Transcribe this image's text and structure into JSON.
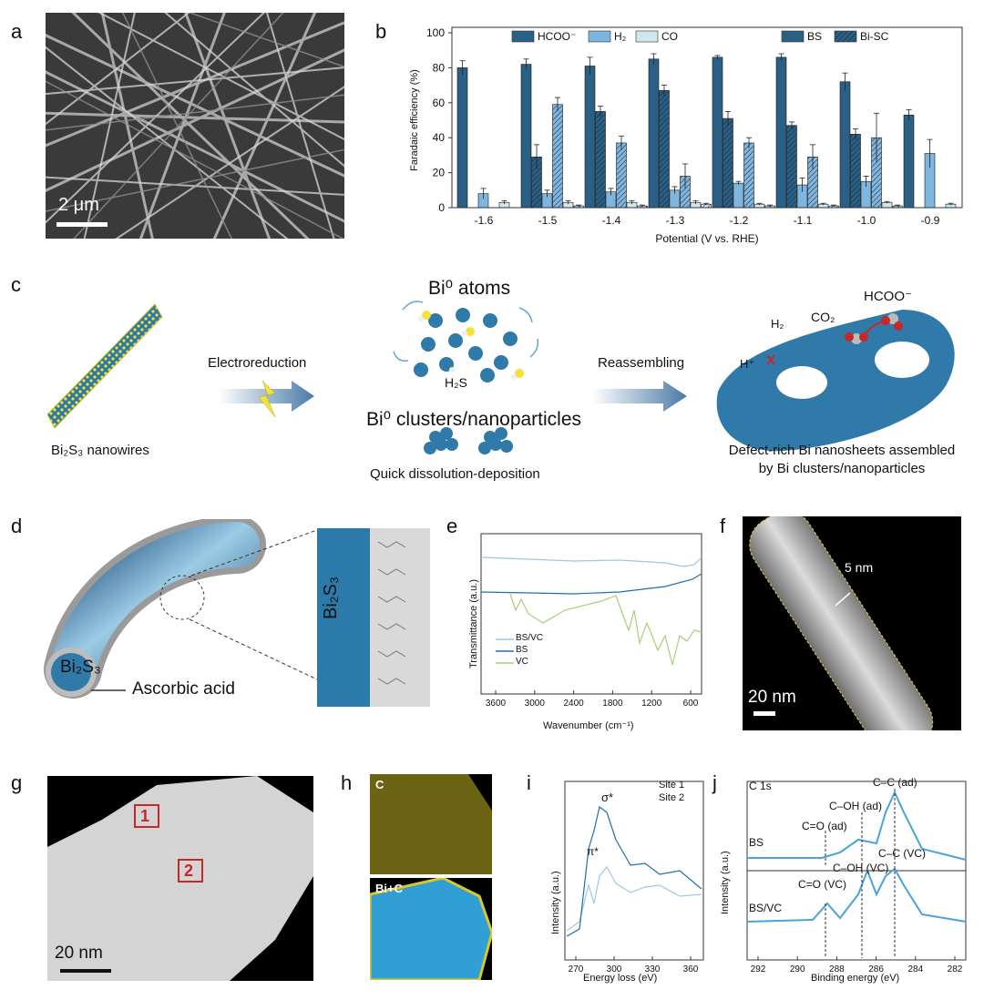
{
  "panel_labels": {
    "a": "a",
    "b": "b",
    "c": "c",
    "d": "d",
    "e": "e",
    "f": "f",
    "g": "g",
    "h": "h",
    "i": "i",
    "j": "j"
  },
  "panel_a": {
    "scale_bar": "2 μm"
  },
  "chart_data": [
    {
      "panel": "b",
      "type": "bar",
      "ylabel": "Faradaic efficiency (%)",
      "xlabel": "Potential (V vs. RHE)",
      "ylim": [
        0,
        100
      ],
      "yticks": [
        "0",
        "20",
        "40",
        "60",
        "80",
        "100"
      ],
      "categories": [
        "-1.6",
        "-1.5",
        "-1.4",
        "-1.3",
        "-1.2",
        "-1.1",
        "-1.0",
        "-0.9"
      ],
      "legend_products": [
        "HCOO⁻",
        "H₂",
        "CO"
      ],
      "legend_catalysts": [
        "BS",
        "Bi-SC"
      ],
      "colors": {
        "HCOO": "#2a5f86",
        "H2": "#7fb6e0",
        "CO": "#cfe7ef"
      },
      "series": [
        {
          "name": "HCOO⁻",
          "catalyst": "BS",
          "values": [
            80,
            82,
            81,
            85,
            86,
            86,
            72,
            53
          ],
          "err": [
            4,
            3,
            5,
            3,
            1,
            2,
            5,
            3
          ]
        },
        {
          "name": "HCOO⁻",
          "catalyst": "Bi-SC",
          "values": [
            null,
            29,
            55,
            67,
            51,
            47,
            42,
            null
          ],
          "err": [
            0,
            7,
            3,
            3,
            4,
            2,
            3,
            0
          ]
        },
        {
          "name": "H₂",
          "catalyst": "BS",
          "values": [
            8,
            8,
            9,
            10,
            14,
            13,
            15,
            31
          ],
          "err": [
            3,
            2,
            2,
            2,
            1,
            4,
            3,
            8
          ]
        },
        {
          "name": "H₂",
          "catalyst": "Bi-SC",
          "values": [
            null,
            59,
            37,
            18,
            37,
            29,
            40,
            null
          ],
          "err": [
            0,
            4,
            4,
            7,
            3,
            7,
            14,
            0
          ]
        },
        {
          "name": "CO",
          "catalyst": "BS",
          "values": [
            3,
            3,
            3,
            3,
            2,
            2,
            3,
            2
          ],
          "err": [
            1,
            1,
            1,
            1,
            0.5,
            0.5,
            0.5,
            0.5
          ]
        },
        {
          "name": "CO",
          "catalyst": "Bi-SC",
          "values": [
            null,
            1,
            1,
            2,
            1,
            1,
            1,
            null
          ],
          "err": [
            0,
            0.5,
            0.5,
            0.5,
            0.5,
            0.5,
            0.5,
            0
          ]
        }
      ]
    },
    {
      "panel": "e",
      "type": "line",
      "xlabel": "Wavenumber (cm⁻¹)",
      "ylabel": "Transmittance (a.u.)",
      "xticks": [
        "3600",
        "3000",
        "2400",
        "1800",
        "1200",
        "600"
      ],
      "series": [
        {
          "name": "BS/VC",
          "color": "#9cc7e3"
        },
        {
          "name": "BS",
          "color": "#1f6fad"
        },
        {
          "name": "VC",
          "color": "#a9cf7a"
        }
      ]
    },
    {
      "panel": "i",
      "type": "line",
      "xlabel": "Energy loss (eV)",
      "ylabel": "Intensity (a.u.)",
      "xticks": [
        "270",
        "300",
        "330",
        "360"
      ],
      "annotations": [
        "σ*",
        "π*"
      ],
      "series": [
        {
          "name": "Site 1",
          "color": "#1f6fad"
        },
        {
          "name": "Site 2",
          "color": "#9cc7e3"
        }
      ]
    },
    {
      "panel": "j",
      "type": "line",
      "title": "C 1s",
      "xlabel": "Binding energy (eV)",
      "ylabel": "Intensity (a.u.)",
      "xticks": [
        "292",
        "290",
        "288",
        "286",
        "284",
        "282"
      ],
      "annotations_top": [
        "C–C (ad)",
        "C–OH (ad)",
        "C=O (ad)",
        "BS"
      ],
      "annotations_bottom": [
        "C–C (VC)",
        "C–OH (VC)",
        "C=O (VC)",
        "BS/VC"
      ]
    }
  ],
  "panel_c": {
    "nanowire_label": "Bi₂S₃ nanowires",
    "step1": "Electroreduction",
    "atoms_label": "Bi⁰ atoms",
    "h2s_label": "H₂S",
    "clusters_label": "Bi⁰ clusters/nanoparticles",
    "dissolution_label": "Quick dissolution-deposition",
    "step2": "Reassembling",
    "hcoo_label": "HCOO⁻",
    "co2_label": "CO₂",
    "h2_label": "H₂",
    "h_label": "H⁺",
    "result_line1": "Defect-rich Bi nanosheets assembled",
    "result_line2": "by Bi clusters/nanoparticles"
  },
  "panel_d": {
    "core_label": "Bi₂S₃",
    "shell_label": "Ascorbic acid",
    "block_label": "Bi₂S₃"
  },
  "panel_f": {
    "thickness": "5 nm",
    "scale_bar": "20 nm"
  },
  "panel_g": {
    "site1": "1",
    "site2": "2",
    "scale_bar": "20 nm"
  },
  "panel_h": {
    "map_c": "C",
    "map_bic": "Bi+C"
  }
}
